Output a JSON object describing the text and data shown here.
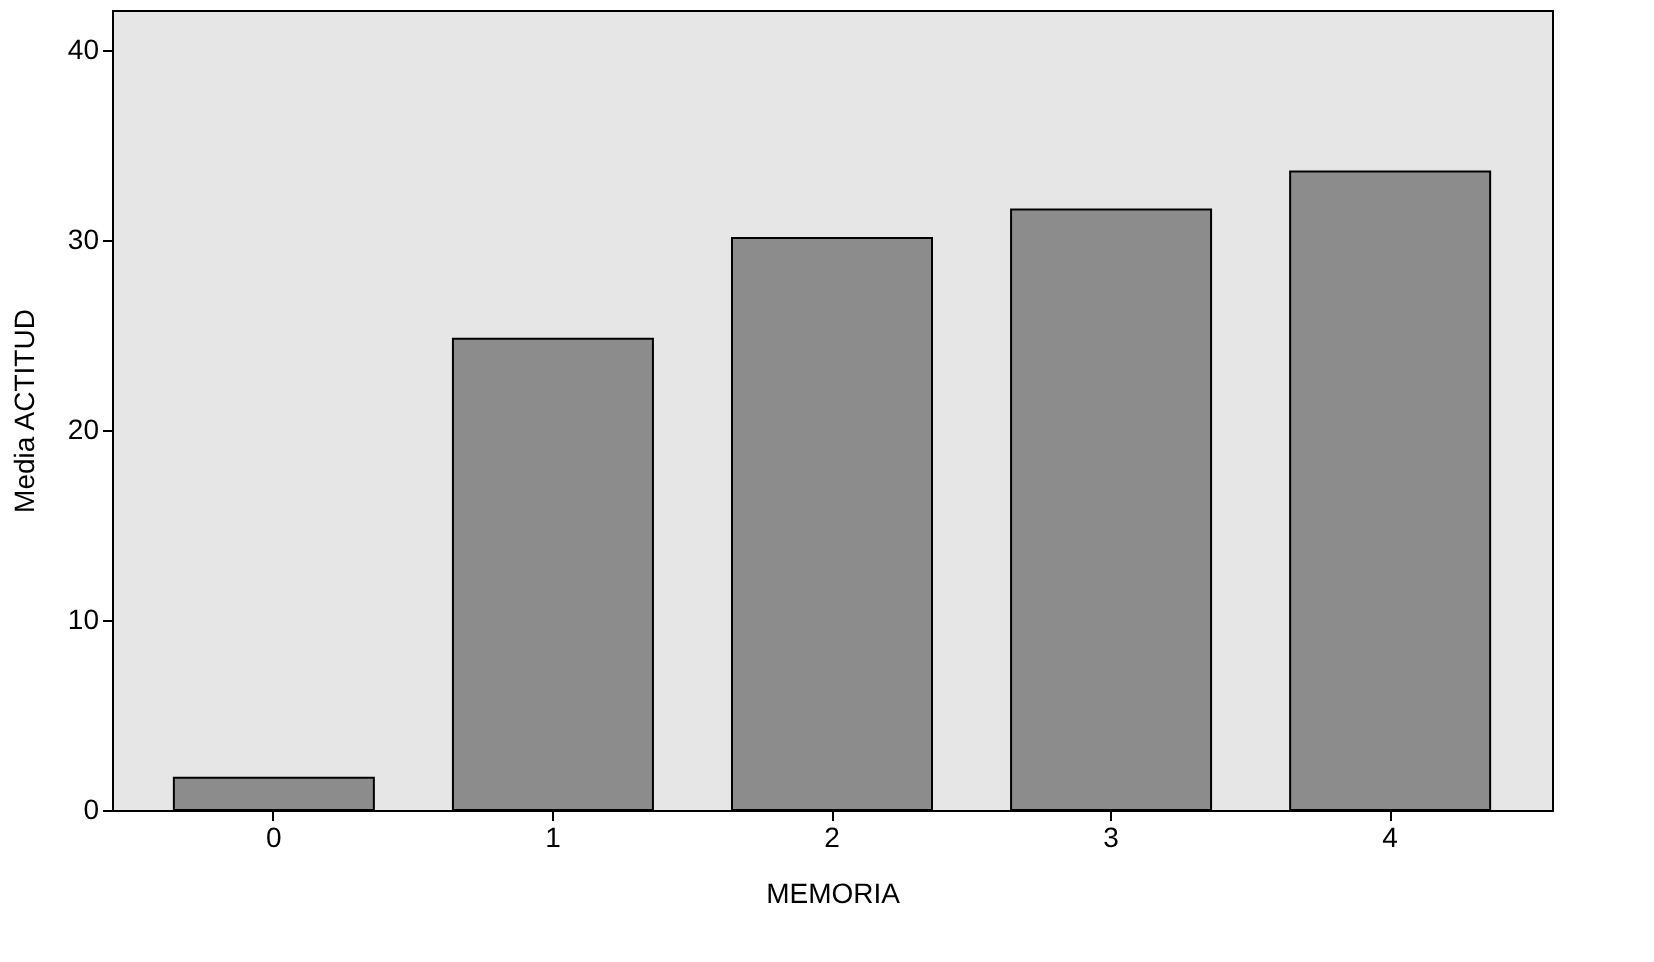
{
  "chart_data": {
    "type": "bar",
    "xlabel": "MEMORIA",
    "ylabel": "Media ACTITUD",
    "categories": [
      "0",
      "1",
      "2",
      "3",
      "4"
    ],
    "values": [
      1.7,
      24.8,
      30.1,
      31.6,
      33.6
    ],
    "color": "#8c8c8c",
    "ylim": [
      0,
      42.1
    ],
    "yticks": [
      0,
      10,
      20,
      30,
      40
    ],
    "grid": false
  }
}
